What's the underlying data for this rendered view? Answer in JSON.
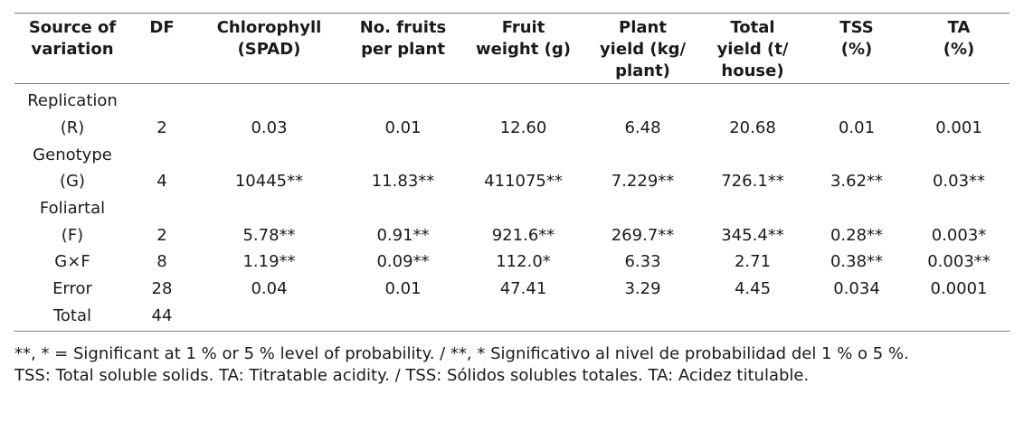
{
  "headers": [
    "Source of variation",
    "DF",
    "Chlorophyll (SPAD)",
    "No. fruits per plant",
    "Fruit weight (g)",
    "Plant yield (kg/ plant)",
    "Total yield (t/ house)",
    "TSS (%)",
    "TA (%)"
  ],
  "header_lines": [
    [
      "Source of",
      "variation"
    ],
    [
      "DF"
    ],
    [
      "Chlorophyll",
      "(SPAD)"
    ],
    [
      "No. fruits",
      "per plant"
    ],
    [
      "Fruit",
      "weight (g)"
    ],
    [
      "Plant",
      "yield (kg/",
      "plant)"
    ],
    [
      "Total",
      "yield (t/",
      "house)"
    ],
    [
      "TSS",
      "(%)"
    ],
    [
      "TA",
      "(%)"
    ]
  ],
  "rows": [
    {
      "label_top": "Replication",
      "label": "(R)",
      "values": [
        "2",
        "0.03",
        "0.01",
        "12.60",
        "6.48",
        "20.68",
        "0.01",
        "0.001"
      ]
    },
    {
      "label_top": "Genotype",
      "label": "(G)",
      "values": [
        "4",
        "10445**",
        "11.83**",
        "411075**",
        "7.229**",
        "726.1**",
        "3.62**",
        "0.03**"
      ]
    },
    {
      "label_top": "Foliartal",
      "label": "(F)",
      "values": [
        "2",
        "5.78**",
        "0.91**",
        "921.6**",
        "269.7**",
        "345.4**",
        "0.28**",
        "0.003*"
      ]
    },
    {
      "label_top": "",
      "label": "G×F",
      "values": [
        "8",
        "1.19**",
        "0.09**",
        "112.0*",
        "6.33",
        "2.71",
        "0.38**",
        "0.003**"
      ]
    },
    {
      "label_top": "",
      "label": "Error",
      "values": [
        "28",
        "0.04",
        "0.01",
        "47.41",
        "3.29",
        "4.45",
        "0.034",
        "0.0001"
      ]
    },
    {
      "label_top": "",
      "label": "Total",
      "values": [
        "44",
        "",
        "",
        "",
        "",
        "",
        "",
        ""
      ]
    }
  ],
  "footnotes": {
    "significance": "**, * = Significant at 1 % or 5 % level of probability. / **, * Significativo al nivel de probabilidad del 1 % o 5 %.",
    "abbreviations": "TSS: Total soluble solids. TA: Titratable acidity. / TSS: Sólidos solubles totales. TA: Acidez titulable."
  }
}
